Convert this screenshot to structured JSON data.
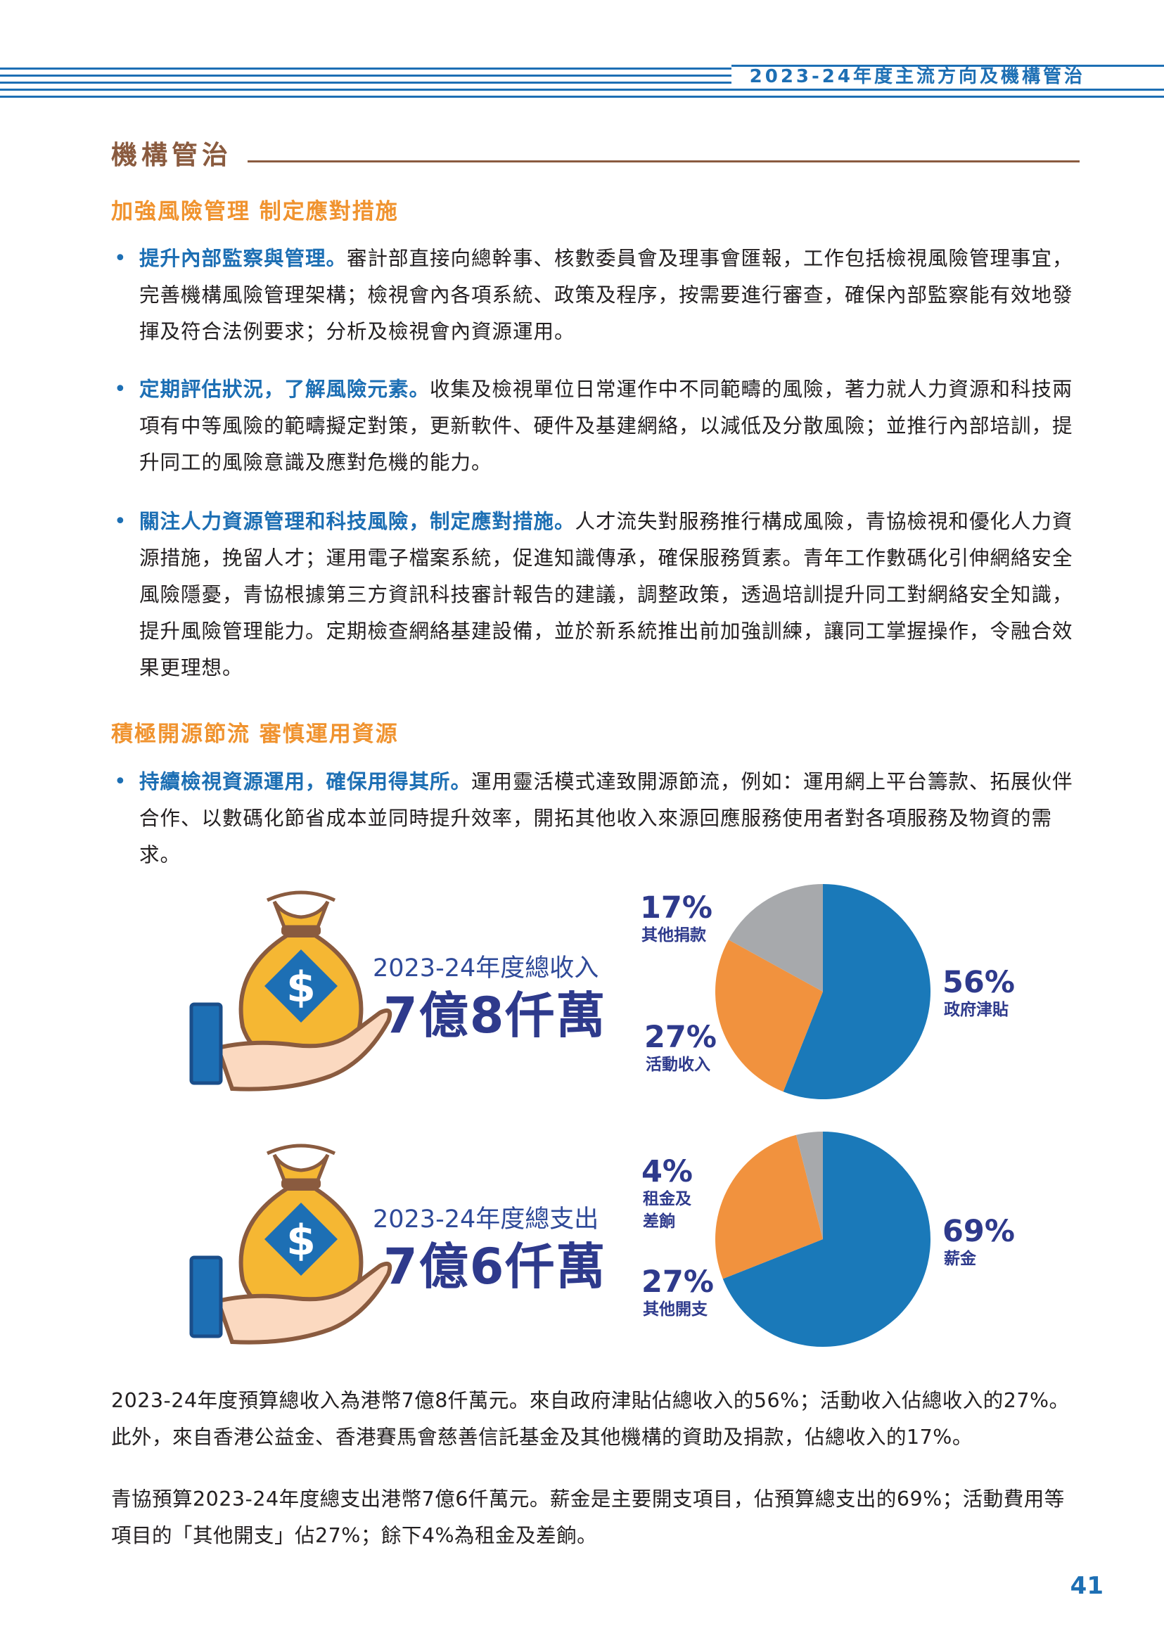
{
  "header": {
    "title": "2023-24年度主流方向及機構管治"
  },
  "section": {
    "title": "機構管治"
  },
  "sub1": {
    "title": "加強風險管理 制定應對措施"
  },
  "bullets1": [
    {
      "lead": "提升內部監察與管理。",
      "body": "審計部直接向總幹事、核數委員會及理事會匯報，工作包括檢視風險管理事宜，完善機構風險管理架構；檢視會內各項系統、政策及程序，按需要進行審查，確保內部監察能有效地發揮及符合法例要求；分析及檢視會內資源運用。"
    },
    {
      "lead": "定期評估狀況，了解風險元素。",
      "body": "收集及檢視單位日常運作中不同範疇的風險，著力就人力資源和科技兩項有中等風險的範疇擬定對策，更新軟件、硬件及基建網絡，以減低及分散風險；並推行內部培訓，提升同工的風險意識及應對危機的能力。"
    },
    {
      "lead": "關注人力資源管理和科技風險，制定應對措施。",
      "body": "人才流失對服務推行構成風險，青協檢視和優化人力資源措施，挽留人才；運用電子檔案系統，促進知識傳承，確保服務質素。青年工作數碼化引伸網絡安全風險隱憂，青協根據第三方資訊科技審計報告的建議，調整政策，透過培訓提升同工對網絡安全知識，提升風險管理能力。定期檢查網絡基建設備，並於新系統推出前加強訓練，讓同工掌握操作，令融合效果更理想。"
    }
  ],
  "sub2": {
    "title": "積極開源節流 審慎運用資源"
  },
  "bullets2": [
    {
      "lead": "持續檢視資源運用，確保用得其所。",
      "body": "運用靈活模式達致開源節流，例如：運用網上平台籌款、拓展伙伴合作、以數碼化節省成本並同時提升效率，開拓其他收入來源回應服務使用者對各項服務及物資的需求。"
    }
  ],
  "income": {
    "caption": "2023-24年度總收入",
    "amount": "7億8仟萬"
  },
  "expense": {
    "caption": "2023-24年度總支出",
    "amount": "7億6仟萬"
  },
  "chart_data": [
    {
      "type": "pie",
      "slices": [
        {
          "label": "政府津貼",
          "pct_label": "56%",
          "value": 56,
          "color": "#1a79b9"
        },
        {
          "label": "活動收入",
          "pct_label": "27%",
          "value": 27,
          "color": "#f1923e"
        },
        {
          "label": "其他捐款",
          "pct_label": "17%",
          "value": 17,
          "color": "#a7a9ac"
        }
      ]
    },
    {
      "type": "pie",
      "slices": [
        {
          "label": "薪金",
          "pct_label": "69%",
          "value": 69,
          "color": "#1a79b9"
        },
        {
          "label": "其他開支",
          "pct_label": "27%",
          "value": 27,
          "color": "#f1923e"
        },
        {
          "label": "租金及差餉",
          "pct_label": "4%",
          "value": 4,
          "color": "#a7a9ac"
        }
      ]
    }
  ],
  "paragraphs": [
    "2023-24年度預算總收入為港幣7億8仟萬元。來自政府津貼佔總收入的56%；活動收入佔總收入的27%。此外，來自香港公益金、香港賽馬會慈善信託基金及其他機構的資助及捐款，佔總收入的17%。",
    "青協預算2023-24年度總支出港幣7億6仟萬元。薪金是主要開支項目，佔預算總支出的69%；活動費用等項目的「其他開支」佔27%；餘下4%為租金及差餉。"
  ],
  "page_number": "41"
}
